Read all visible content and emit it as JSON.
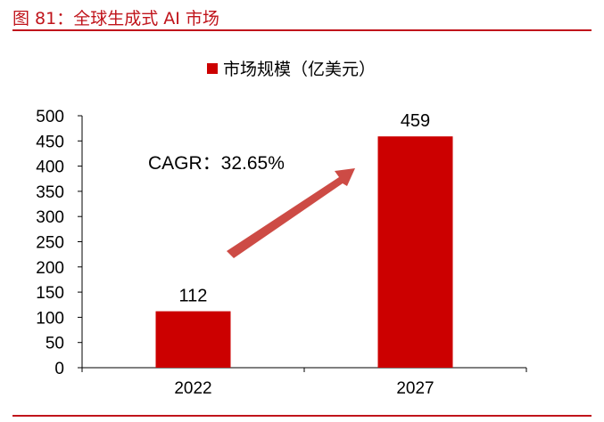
{
  "figure_title": "图 81：全球生成式 AI 市场",
  "colors": {
    "accent": "#c0141b",
    "bar": "#cc0000",
    "arrow": "#cd4b45"
  },
  "chart_data": {
    "type": "bar",
    "categories": [
      "2022",
      "2027"
    ],
    "series": [
      {
        "name": "市场规模（亿美元）",
        "values": [
          112,
          459
        ]
      }
    ],
    "data_labels": [
      "112",
      "459"
    ],
    "ylim": [
      0,
      500
    ],
    "yticks": [
      0,
      50,
      100,
      150,
      200,
      250,
      300,
      350,
      400,
      450,
      500
    ],
    "legend_position": "top-center",
    "grid": false,
    "annotation": {
      "text": "CAGR：32.65%",
      "icon": "up-right-arrow-icon"
    }
  }
}
